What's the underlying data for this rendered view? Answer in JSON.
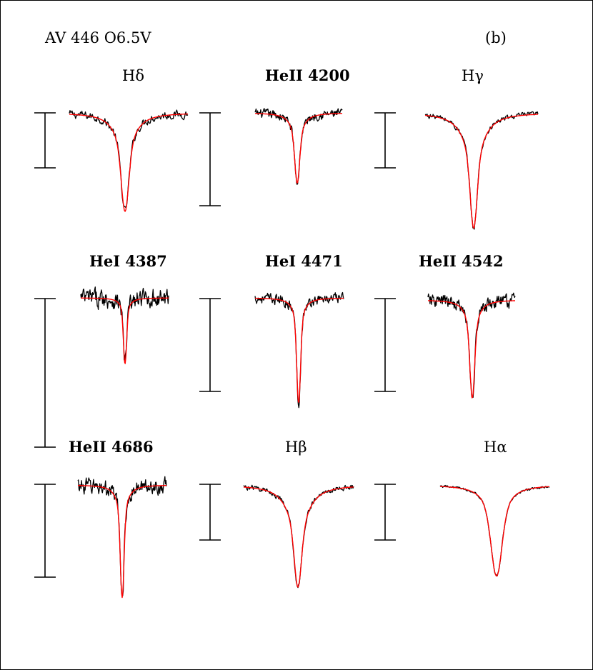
{
  "figure": {
    "star_label": "AV 446  O6.5V",
    "panel_tag": "(b)"
  },
  "chart_data": [
    {
      "type": "line",
      "title": "Hδ",
      "scale_bar": 1.0,
      "depth": 0.92,
      "core_width": 0.055,
      "wing_width": 0.16,
      "core_frac": 0.55,
      "noise": 0.06,
      "x_range": [
        -1,
        1
      ]
    },
    {
      "type": "line",
      "title": "HeII 4200",
      "scale_bar": 1.0,
      "depth": 0.82,
      "core_width": 0.05,
      "wing_width": 0.14,
      "core_frac": 0.6,
      "noise": 0.08,
      "x_range": [
        -1,
        1
      ]
    },
    {
      "type": "line",
      "title": "Hγ",
      "scale_bar": 1.0,
      "depth": 0.95,
      "core_width": 0.05,
      "wing_width": 0.17,
      "core_frac": 0.55,
      "noise": 0.035,
      "x_range": [
        -1,
        1
      ]
    },
    {
      "type": "line",
      "title": "HeI 4387",
      "scale_bar": 1.0,
      "depth": 0.42,
      "core_width": 0.035,
      "wing_width": 0.1,
      "core_frac": 0.75,
      "noise": 0.09,
      "x_range": [
        -1,
        1
      ]
    },
    {
      "type": "line",
      "title": "HeI 4471",
      "scale_bar": 1.0,
      "depth": 0.98,
      "core_width": 0.04,
      "wing_width": 0.11,
      "core_frac": 0.7,
      "noise": 0.07,
      "x_range": [
        -1,
        1
      ]
    },
    {
      "type": "line",
      "title": "HeII 4542",
      "scale_bar": 1.0,
      "depth": 0.98,
      "core_width": 0.05,
      "wing_width": 0.13,
      "core_frac": 0.6,
      "noise": 0.1,
      "x_range": [
        -1,
        1
      ]
    },
    {
      "type": "line",
      "title": "HeII 4686",
      "scale_bar": 1.0,
      "depth": 1.05,
      "core_width": 0.04,
      "wing_width": 0.12,
      "core_frac": 0.7,
      "noise": 0.11,
      "x_range": [
        -1,
        1
      ]
    },
    {
      "type": "line",
      "title": "Hβ",
      "scale_bar": 1.0,
      "depth": 1.3,
      "core_width": 0.06,
      "wing_width": 0.2,
      "core_frac": 0.5,
      "noise": 0.05,
      "x_range": [
        -1,
        1
      ]
    },
    {
      "type": "line",
      "title": "Hα",
      "scale_bar": 1.0,
      "depth": 1.7,
      "core_width": 0.09,
      "wing_width": 0.18,
      "core_frac": 0.5,
      "noise": 0.035,
      "x_range": [
        -1,
        1
      ]
    }
  ],
  "colors": {
    "observed": "#000000",
    "model": "#ff0000"
  }
}
